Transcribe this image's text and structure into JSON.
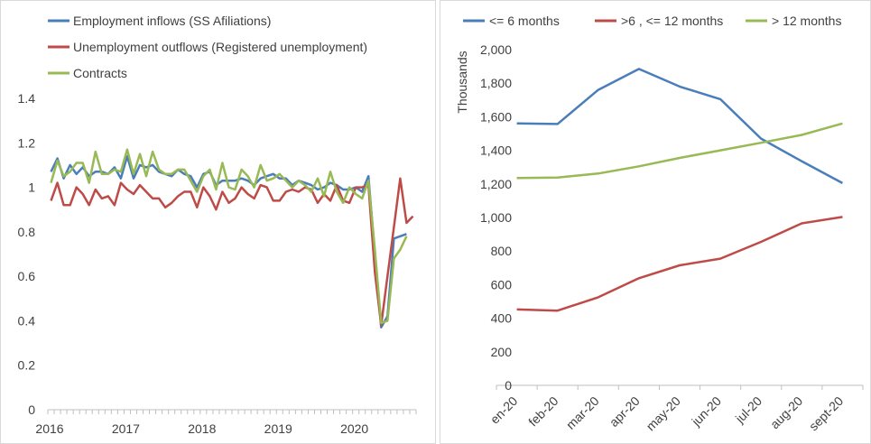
{
  "chart_data": [
    {
      "type": "line",
      "title": "",
      "xlabel": "",
      "ylabel": "",
      "ylim": [
        0,
        1.4
      ],
      "y_ticks": [
        "0",
        "0.2",
        "0.4",
        "0.6",
        "0.8",
        "1",
        "1.2",
        "1.4"
      ],
      "x_tick_labels": [
        "2016",
        "2017",
        "2018",
        "2019",
        "2020"
      ],
      "grid": false,
      "legend_position": "top-left",
      "series": [
        {
          "name": "Employment inflows (SS Afiliations)",
          "color": "#4a7ebb",
          "values": [
            1.07,
            1.13,
            1.04,
            1.1,
            1.06,
            1.09,
            1.05,
            1.07,
            1.07,
            1.06,
            1.09,
            1.04,
            1.14,
            1.04,
            1.1,
            1.09,
            1.1,
            1.07,
            1.06,
            1.05,
            1.08,
            1.06,
            1.05,
            1.0,
            1.06,
            1.07,
            1.01,
            1.03,
            1.03,
            1.03,
            1.04,
            1.03,
            1.01,
            1.04,
            1.05,
            1.06,
            1.04,
            1.04,
            1.01,
            1.03,
            1.02,
            1.01,
            0.99,
            1.0,
            1.02,
            1.01,
            0.99,
            0.99,
            1.0,
            0.98,
            1.05,
            0.7,
            0.37,
            0.42,
            0.77,
            0.78,
            0.79
          ]
        },
        {
          "name": "Unemployment outflows (Registered unemployment)",
          "color": "#be4b48",
          "values": [
            0.94,
            1.02,
            0.92,
            0.92,
            1.0,
            0.97,
            0.92,
            0.99,
            0.95,
            0.96,
            0.92,
            1.02,
            0.99,
            0.97,
            1.01,
            0.98,
            0.95,
            0.95,
            0.91,
            0.93,
            0.96,
            0.98,
            0.98,
            0.91,
            1.0,
            0.96,
            0.9,
            0.98,
            0.93,
            0.95,
            1.0,
            0.97,
            0.95,
            1.01,
            1.0,
            0.94,
            0.94,
            0.98,
            0.99,
            0.98,
            1.0,
            0.99,
            0.93,
            0.97,
            0.94,
            1.01,
            0.94,
            0.93,
            1.0,
            1.0,
            1.01,
            0.62,
            0.38,
            0.6,
            0.82,
            1.04,
            0.84,
            0.87
          ]
        },
        {
          "name": "Contracts",
          "color": "#98b954",
          "values": [
            1.02,
            1.12,
            1.05,
            1.07,
            1.11,
            1.11,
            1.02,
            1.16,
            1.06,
            1.06,
            1.08,
            1.07,
            1.17,
            1.06,
            1.15,
            1.05,
            1.16,
            1.08,
            1.06,
            1.06,
            1.08,
            1.08,
            1.03,
            0.98,
            1.05,
            1.08,
            0.99,
            1.11,
            1.0,
            0.99,
            1.08,
            1.05,
            1.0,
            1.1,
            1.03,
            1.04,
            1.06,
            1.03,
            1.0,
            1.03,
            1.01,
            0.98,
            1.04,
            0.96,
            1.07,
            0.98,
            0.93,
            1.0,
            0.97,
            0.95,
            1.03,
            0.72,
            0.39,
            0.4,
            0.68,
            0.72,
            0.78
          ]
        }
      ]
    },
    {
      "type": "line",
      "title": "",
      "xlabel": "",
      "ylabel": "Thousands",
      "ylim": [
        0,
        2000
      ],
      "y_ticks": [
        "0",
        "200",
        "400",
        "600",
        "800",
        "1,000",
        "1,200",
        "1,400",
        "1,600",
        "1,800",
        "2,000"
      ],
      "categories": [
        "en-20",
        "feb-20",
        "mar-20",
        "apr-20",
        "may-20",
        "jun-20",
        "jul-20",
        "aug-20",
        "sept-20"
      ],
      "grid": false,
      "legend_position": "top",
      "series": [
        {
          "name": "<= 6 months",
          "color": "#4a7ebb",
          "values": [
            1560,
            1557,
            1760,
            1885,
            1780,
            1705,
            1470,
            1335,
            1205
          ]
        },
        {
          "name": ">6 , <= 12 months",
          "color": "#be4b48",
          "values": [
            452,
            445,
            525,
            638,
            715,
            755,
            855,
            965,
            1003
          ]
        },
        {
          "name": "> 12 months",
          "color": "#98b954",
          "values": [
            1235,
            1238,
            1262,
            1305,
            1355,
            1400,
            1445,
            1492,
            1560
          ]
        }
      ]
    }
  ]
}
